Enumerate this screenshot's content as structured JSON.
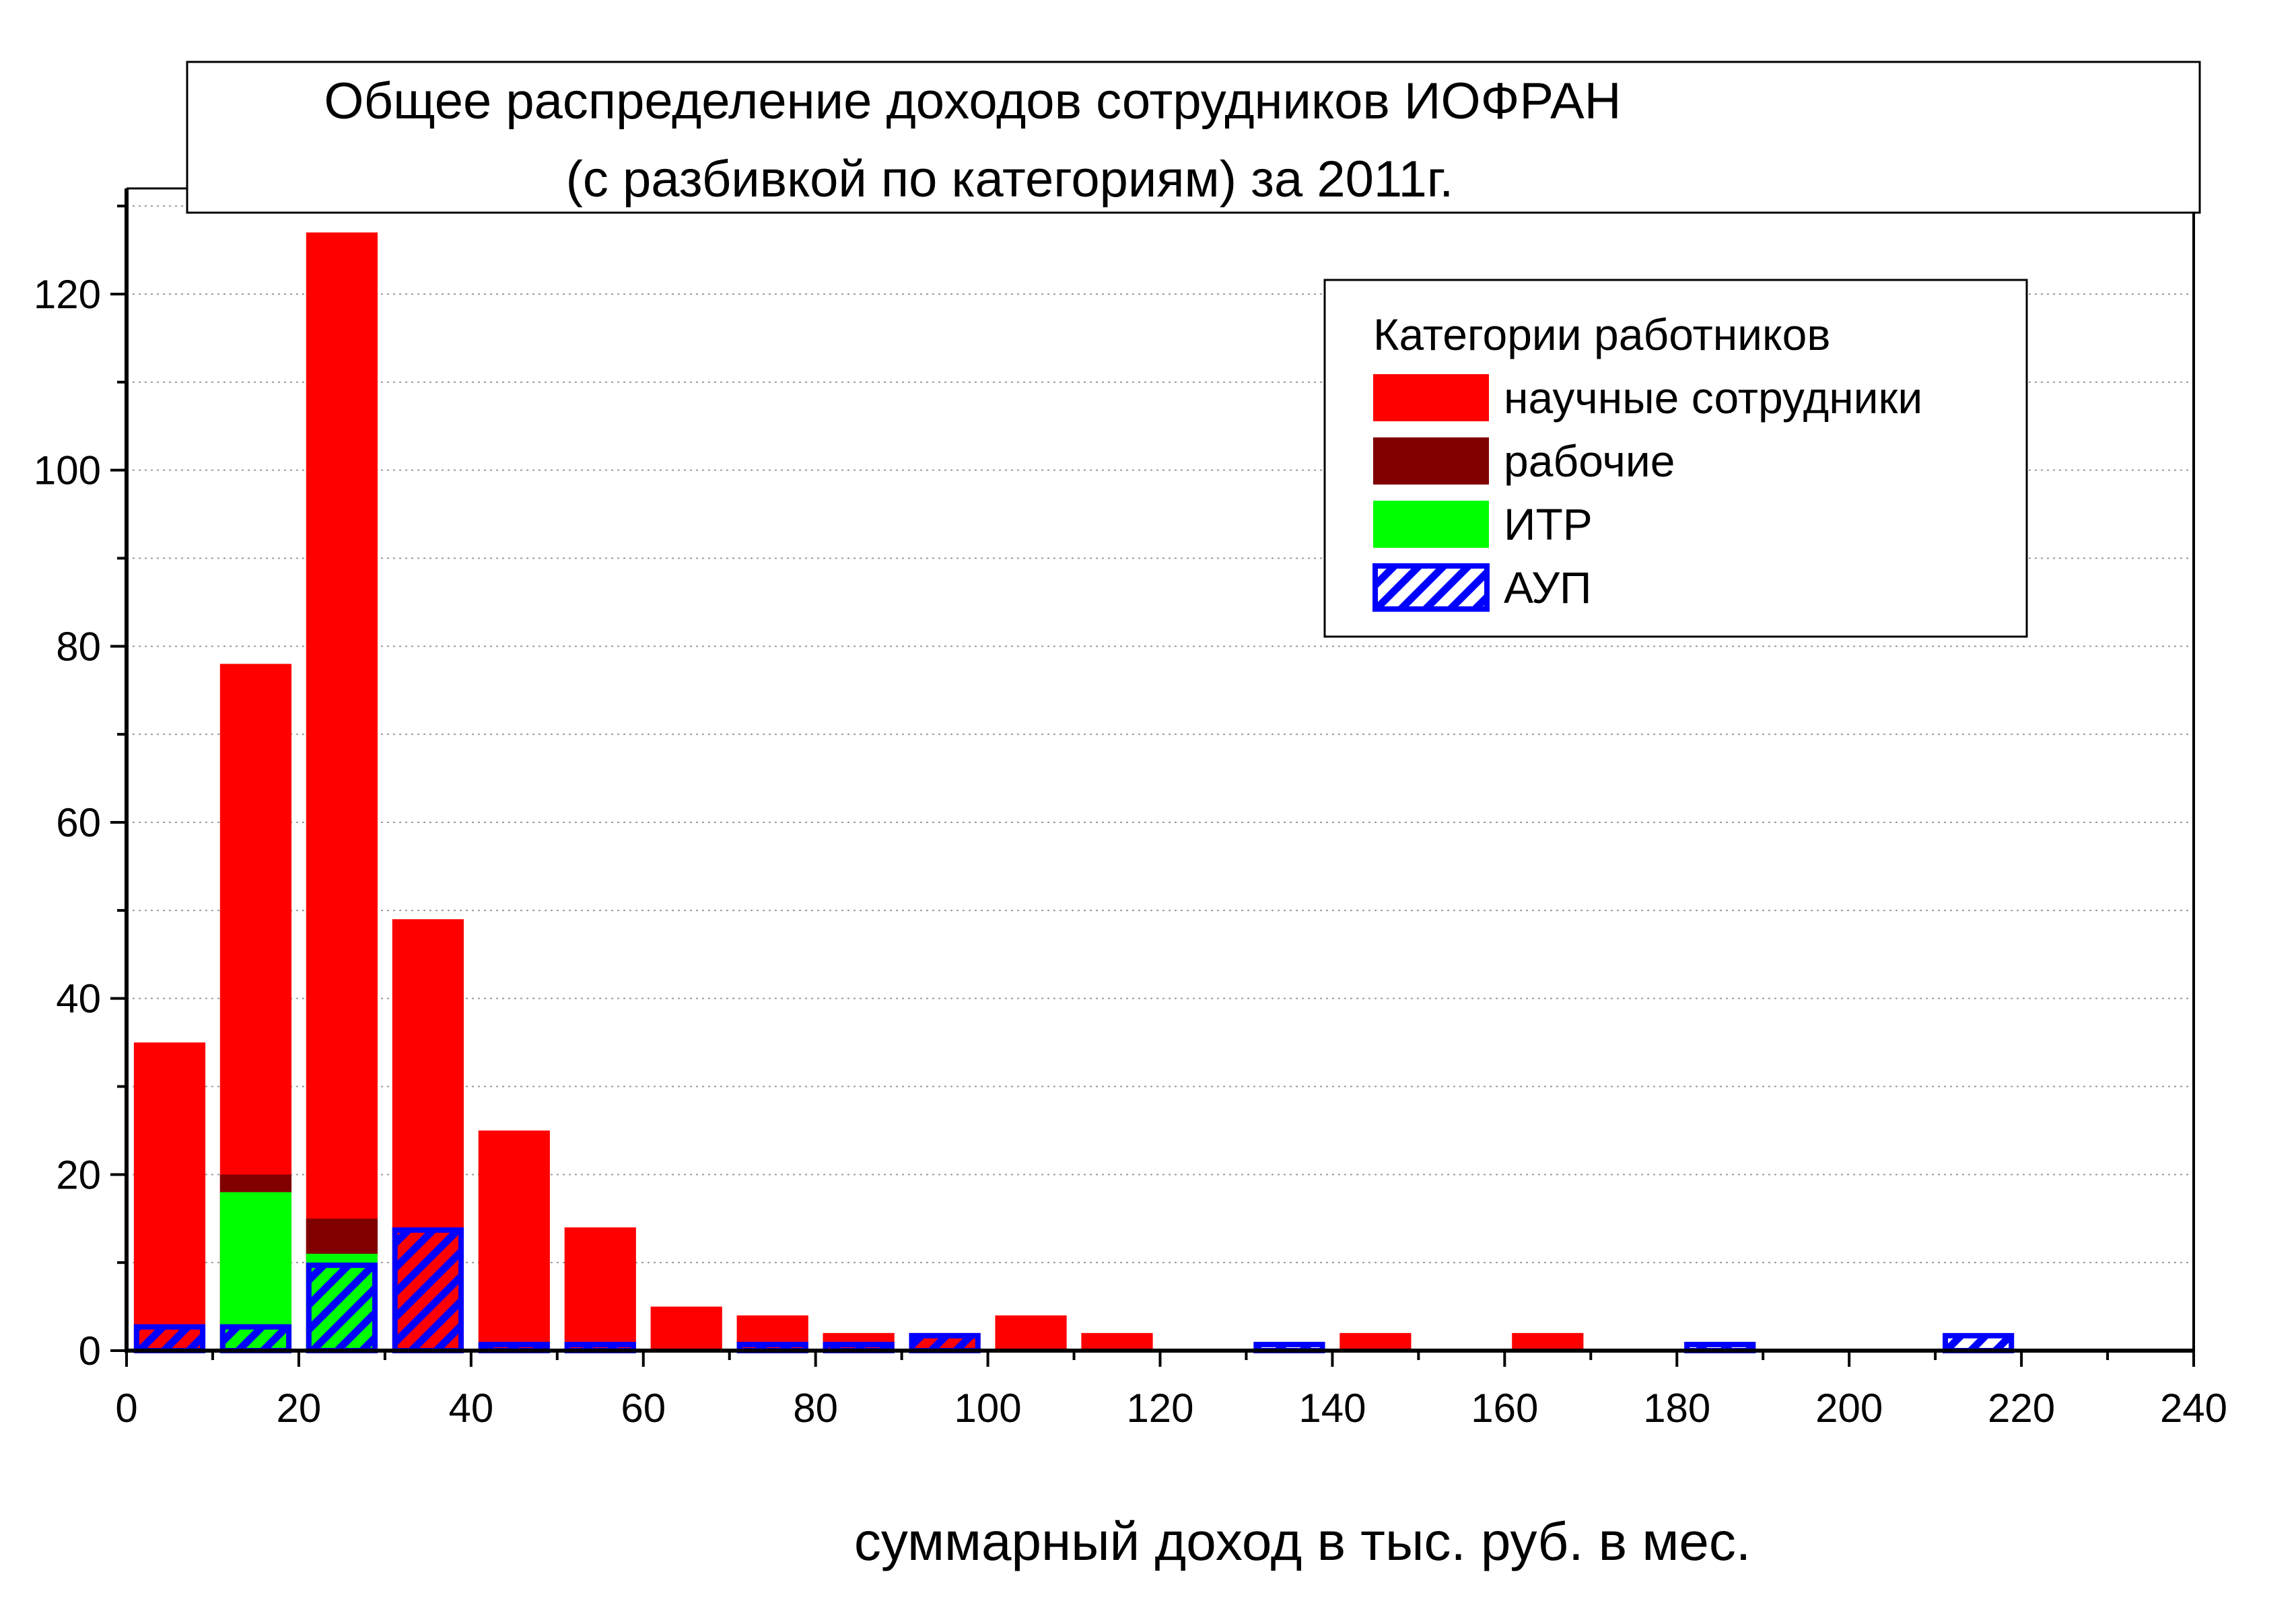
{
  "chart_data": {
    "type": "bar",
    "title": "Общее распределение доходов сотрудников ИОФРАН",
    "subtitle": "(с разбивкой по категориям) за 2011г.",
    "xlabel": "суммарный доход в тыс. руб. в мес.",
    "ylabel": "",
    "xlim": [
      0,
      240
    ],
    "ylim": [
      0,
      132
    ],
    "x_ticks": [
      0,
      20,
      40,
      60,
      80,
      100,
      120,
      140,
      160,
      180,
      200,
      220,
      240
    ],
    "y_ticks": [
      0,
      20,
      40,
      60,
      80,
      100,
      120
    ],
    "grid": "horizontal dotted",
    "legend": {
      "title": "Категории работников",
      "position": "top-right"
    },
    "bin_width": 10,
    "bins": [
      0,
      10,
      20,
      30,
      40,
      50,
      60,
      70,
      80,
      90,
      100,
      110,
      120,
      130,
      140,
      150,
      160,
      170,
      180,
      190,
      200,
      210
    ],
    "series": [
      {
        "name": "научные сотрудники",
        "color": "#ff0000",
        "fill": "solid",
        "values": [
          35,
          78,
          127,
          49,
          25,
          14,
          5,
          4,
          2,
          2,
          4,
          2,
          0,
          0,
          2,
          0,
          2,
          0,
          0,
          0,
          0,
          0
        ]
      },
      {
        "name": "рабочие",
        "color": "#800000",
        "fill": "solid",
        "values": [
          0,
          20,
          15,
          0,
          0,
          0,
          0,
          0,
          0,
          0,
          0,
          0,
          0,
          0,
          0,
          0,
          0,
          0,
          0,
          0,
          0,
          0
        ]
      },
      {
        "name": "ИТР",
        "color": "#00ff00",
        "fill": "solid",
        "values": [
          0,
          18,
          11,
          0,
          0,
          0,
          0,
          0,
          0,
          0,
          0,
          0,
          0,
          0,
          0,
          0,
          0,
          0,
          0,
          0,
          0,
          0
        ]
      },
      {
        "name": "АУП",
        "color": "#0000ff",
        "fill": "hatched",
        "values": [
          3,
          3,
          10,
          14,
          1,
          1,
          0,
          1,
          1,
          2,
          0,
          0,
          0,
          1,
          0,
          0,
          0,
          0,
          1,
          0,
          0,
          2
        ]
      }
    ]
  }
}
